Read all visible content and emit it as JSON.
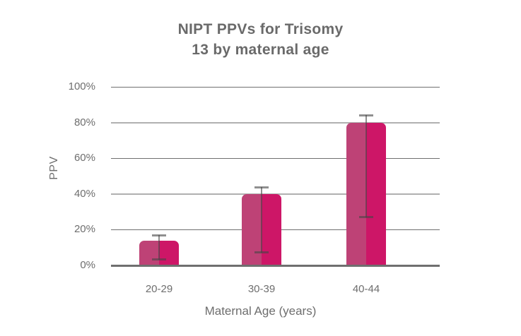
{
  "chart_data": {
    "type": "bar",
    "title": "NIPT PPVs for Trisomy 13 by maternal age",
    "title_lines": [
      "NIPT PPVs for Trisomy",
      "13 by maternal age"
    ],
    "categories": [
      "20-29",
      "30-39",
      "40-44"
    ],
    "values": [
      14,
      40,
      80
    ],
    "error_bars": [
      {
        "low": 3,
        "high": 17
      },
      {
        "low": 7,
        "high": 44
      },
      {
        "low": 27,
        "high": 84
      }
    ],
    "xlabel": "Maternal Age (years)",
    "ylabel": "PPV",
    "ylim": [
      0,
      100
    ],
    "yticks": [
      100,
      80,
      60,
      40,
      20,
      0
    ],
    "ytick_labels": [
      "100%",
      "80%",
      "60%",
      "40%",
      "20%",
      "0%"
    ],
    "grid": true,
    "legend": false
  },
  "colors": {
    "bar_left": "#BE4276",
    "bar_right": "#CD1667",
    "error_bar": "rgba(70,70,70,0.6)",
    "grid_thin": "#6f6f6f",
    "grid_thick": "#b0b0b0",
    "axis_line": "#6f6f6f",
    "text": "#6e6e6e"
  }
}
